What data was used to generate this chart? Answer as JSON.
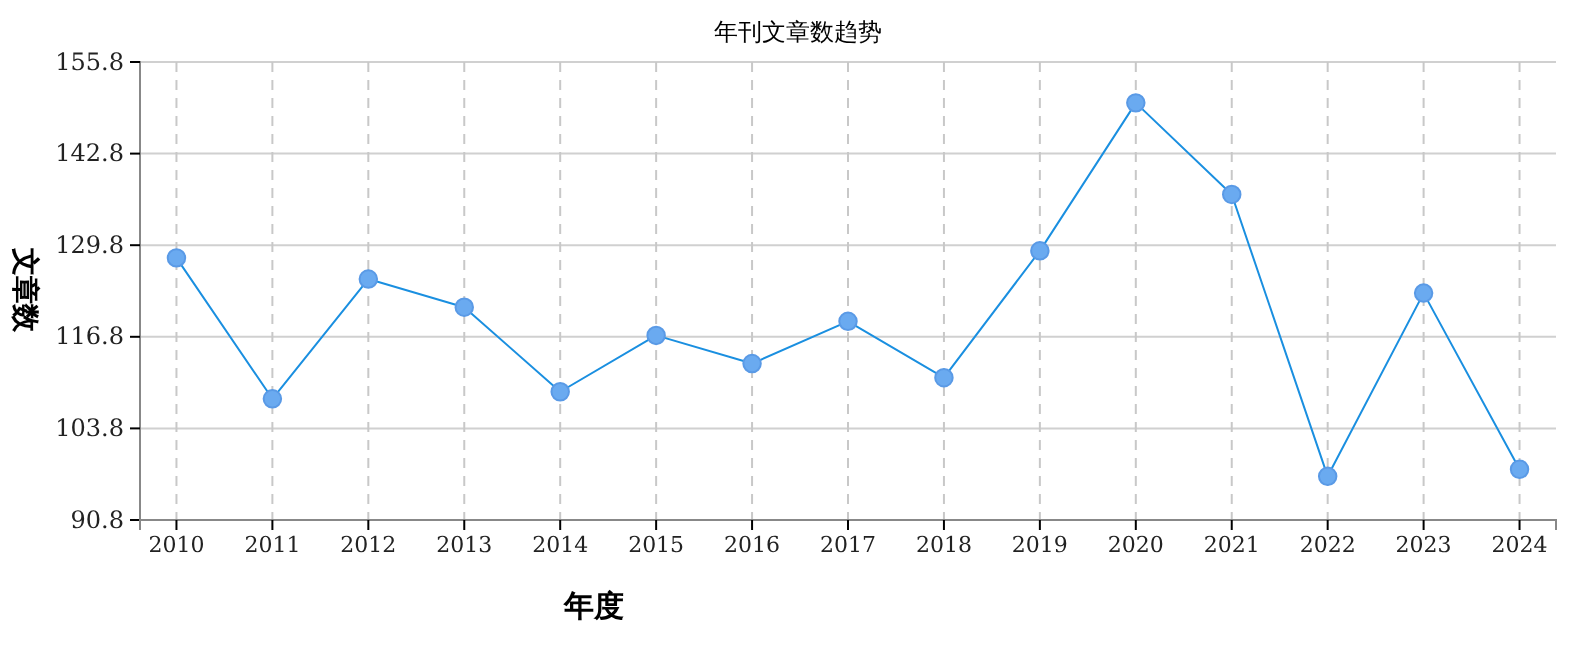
{
  "chart_data": {
    "type": "line",
    "title": "年刊文章数趋势",
    "xlabel": "年度",
    "ylabel": "文章数",
    "categories": [
      "2010",
      "2011",
      "2012",
      "2013",
      "2014",
      "2015",
      "2016",
      "2017",
      "2018",
      "2019",
      "2020",
      "2021",
      "2022",
      "2023",
      "2024"
    ],
    "series": [
      {
        "color": "#1a8fe0",
        "values": [
          128,
          108,
          125,
          121,
          109,
          117,
          113,
          119,
          111,
          129,
          150,
          137,
          97,
          123,
          98
        ]
      }
    ],
    "ylim": [
      90.8,
      155.8
    ],
    "yticks": [
      90.8,
      103.8,
      116.8,
      129.8,
      142.8,
      155.8
    ],
    "grid": true,
    "marker": "circle",
    "line_style": "solid"
  }
}
